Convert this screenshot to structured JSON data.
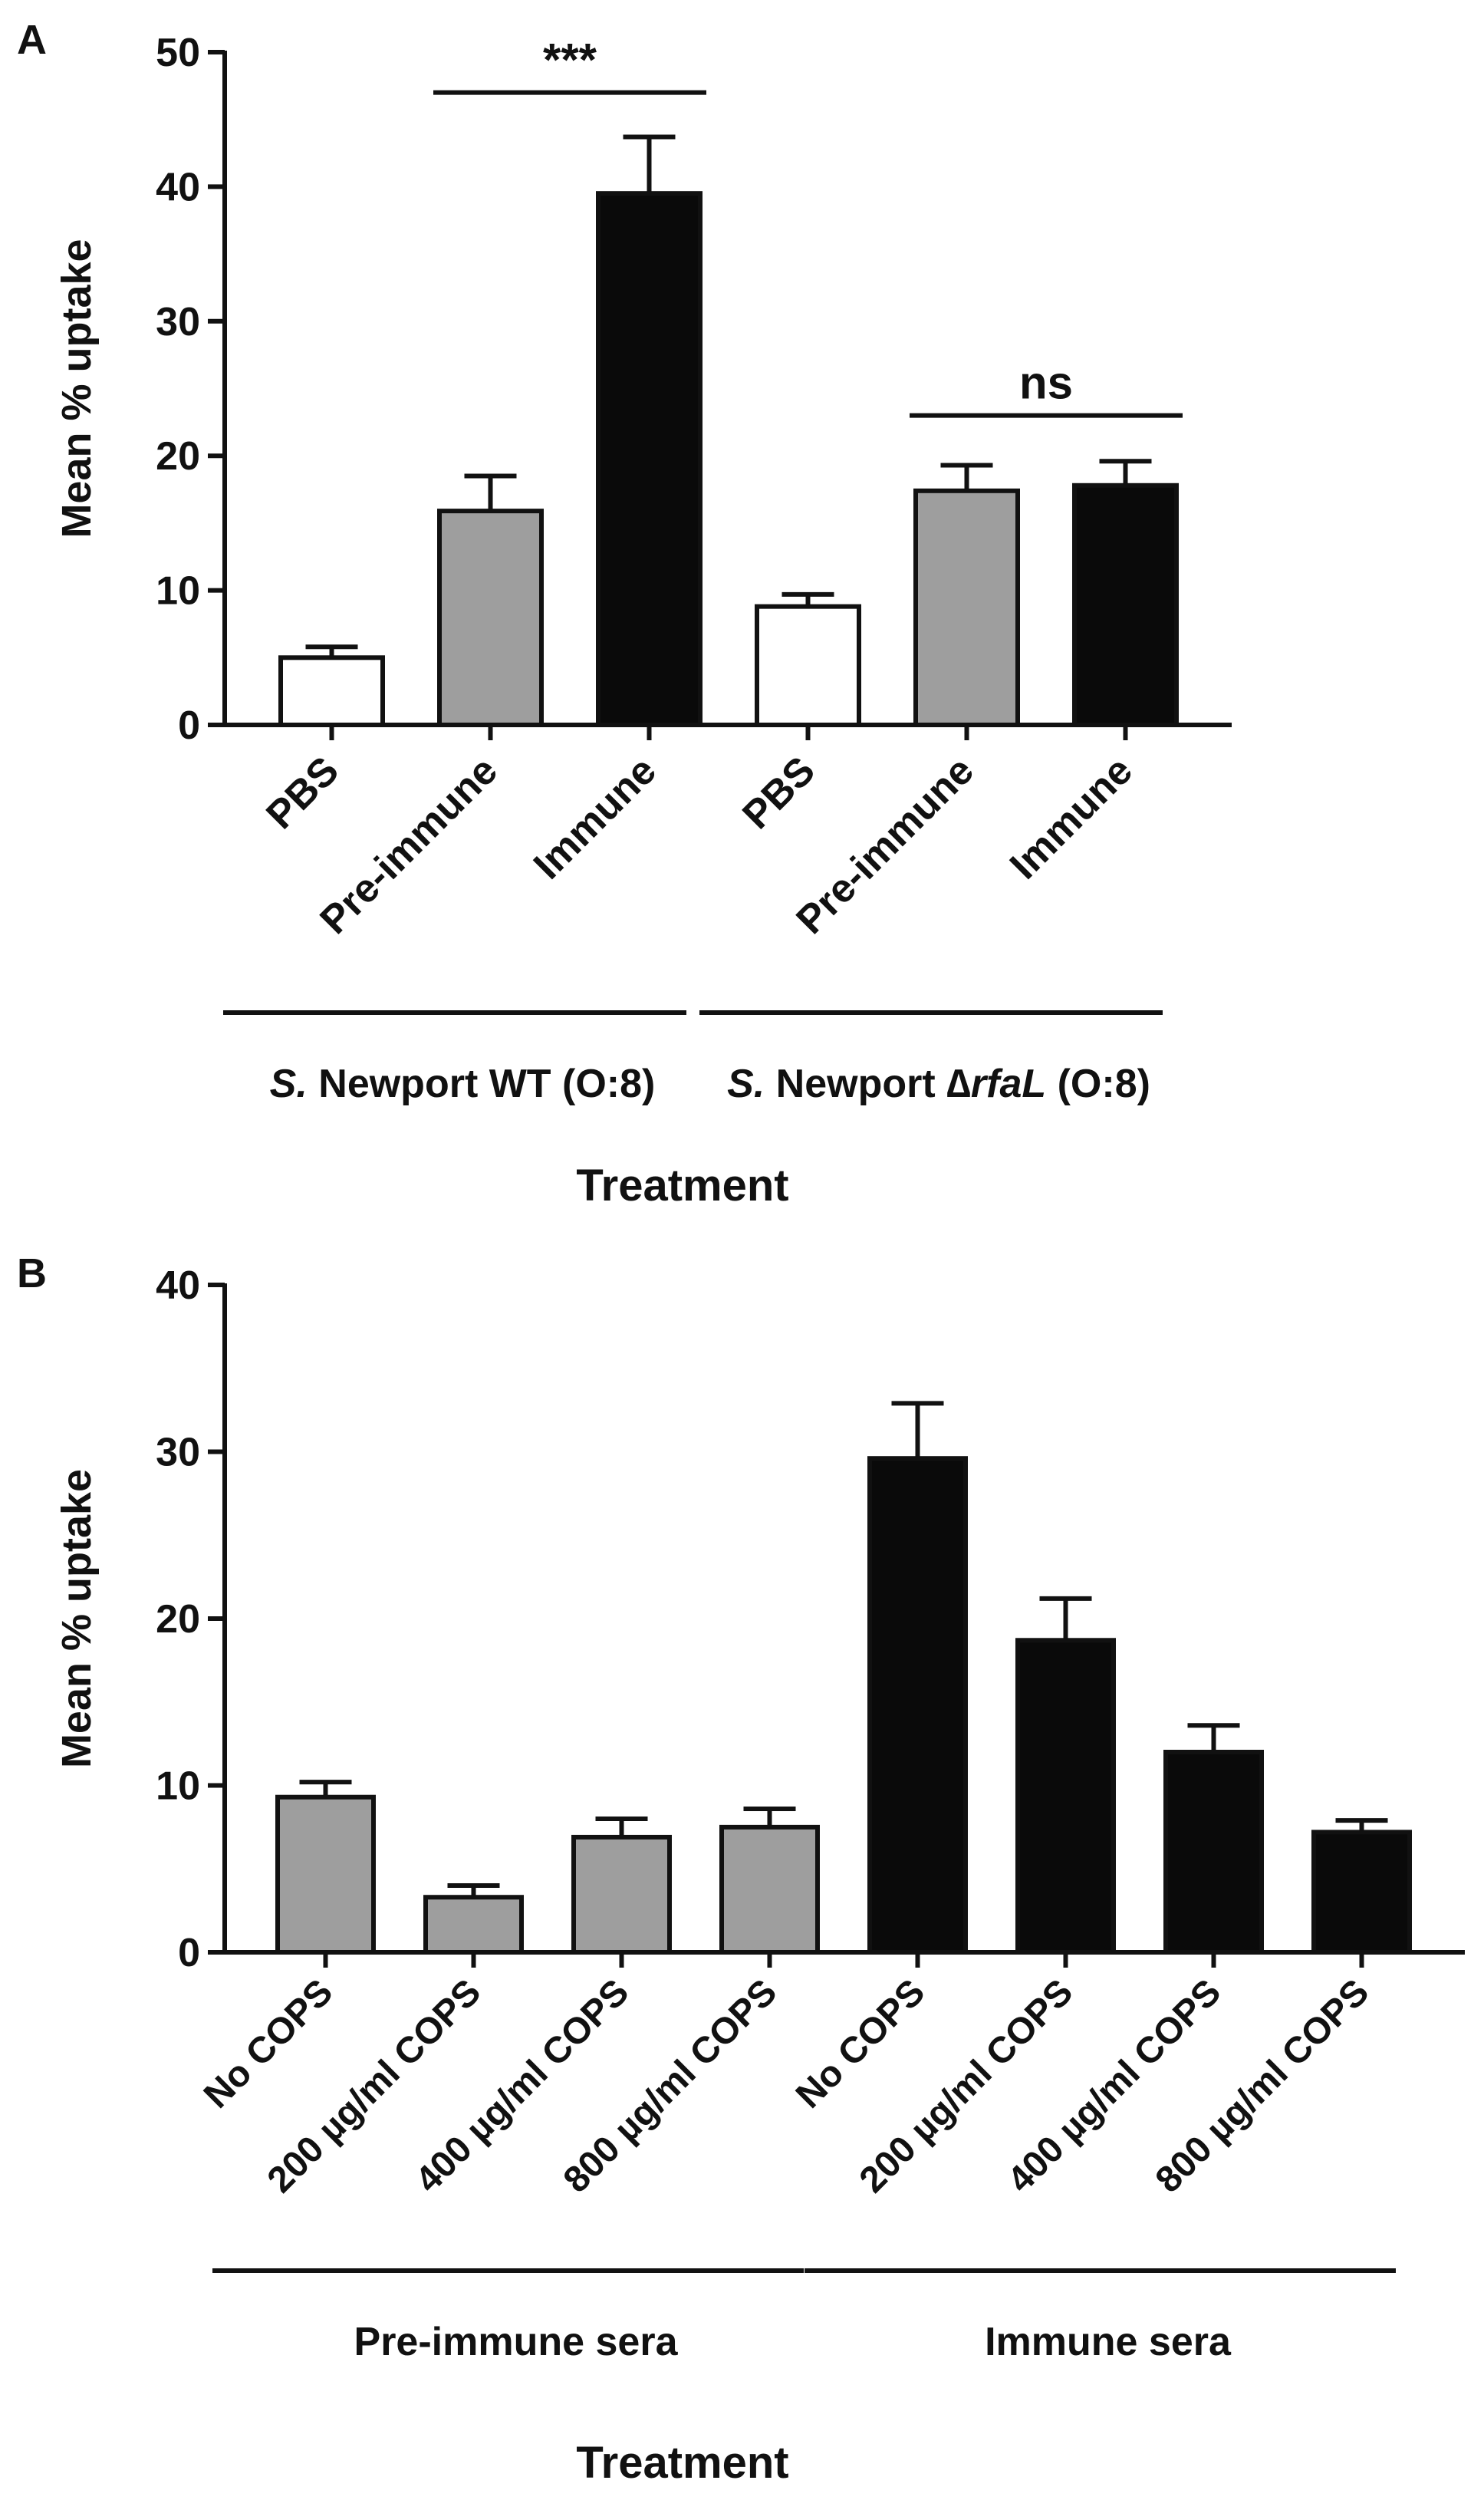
{
  "colors": {
    "open": "#ffffff",
    "gray": "#9e9e9e",
    "black": "#0a0a0a",
    "ink": "#111111"
  },
  "chart_data": [
    {
      "panel": "A",
      "type": "bar",
      "ylabel": "Mean % uptake",
      "xlabel": "Treatment",
      "ylim": [
        0,
        50
      ],
      "yticks": [
        0,
        10,
        20,
        30,
        40,
        50
      ],
      "categories": [
        "PBS",
        "Pre-immune",
        "Immune",
        "PBS",
        "Pre-immune",
        "Immune"
      ],
      "values": [
        5.0,
        15.9,
        39.5,
        8.8,
        17.4,
        17.8
      ],
      "errors": [
        0.8,
        2.6,
        4.2,
        0.9,
        1.9,
        1.8
      ],
      "fills": [
        "open",
        "gray",
        "black",
        "open",
        "gray",
        "black"
      ],
      "groups": [
        {
          "label_pre": "S.",
          "label_mid": " Newport WT (O:8)",
          "label_post": "",
          "start": 0,
          "end": 2
        },
        {
          "label_pre": "S.",
          "label_mid": " Newport ∆",
          "label_italic": "rfaL",
          "label_post": " (O:8)",
          "start": 3,
          "end": 5
        }
      ],
      "annotations": [
        {
          "text": "***",
          "from": 1,
          "to": 2,
          "y": 47
        },
        {
          "text": "ns",
          "from": 4,
          "to": 5,
          "y": 23
        }
      ]
    },
    {
      "panel": "B",
      "type": "bar",
      "ylabel": "Mean % uptake",
      "xlabel": "Treatment",
      "ylim": [
        0,
        40
      ],
      "yticks": [
        0,
        10,
        20,
        30,
        40
      ],
      "categories": [
        "No COPS",
        "200 µg/ml COPS",
        "400 µg/ml COPS",
        "800 µg/ml COPS",
        "No COPS",
        "200 µg/ml COPS",
        "400 µg/ml COPS",
        "800 µg/ml COPS"
      ],
      "values": [
        9.3,
        3.3,
        6.9,
        7.5,
        29.6,
        18.7,
        12.0,
        7.2
      ],
      "errors": [
        0.9,
        0.7,
        1.1,
        1.1,
        3.3,
        2.5,
        1.6,
        0.7
      ],
      "fills": [
        "gray",
        "gray",
        "gray",
        "gray",
        "black",
        "black",
        "black",
        "black"
      ],
      "groups": [
        {
          "label_mid": "Pre-immune sera",
          "start": 0,
          "end": 3
        },
        {
          "label_mid": "Immune sera",
          "start": 4,
          "end": 7
        }
      ],
      "annotations": []
    }
  ]
}
